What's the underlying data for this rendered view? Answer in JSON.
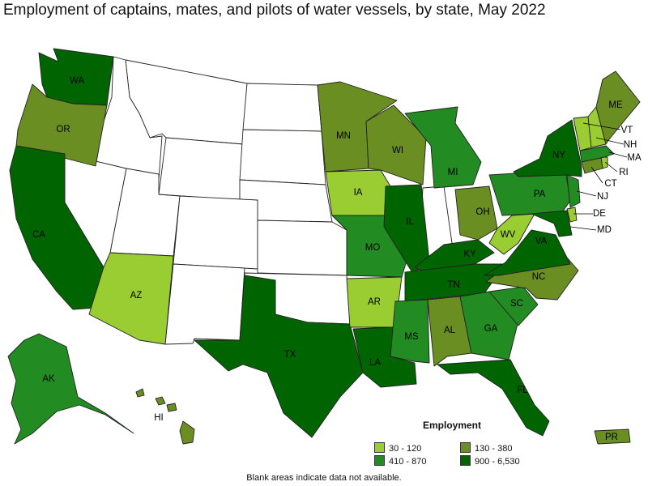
{
  "title": "Employment of captains, mates, and pilots of water vessels, by state, May 2022",
  "legend": {
    "title": "Employment",
    "items": [
      {
        "label": "30 - 120",
        "color": "#9ACD32"
      },
      {
        "label": "130 - 380",
        "color": "#6B8E23"
      },
      {
        "label": "410 - 870",
        "color": "#228B22"
      },
      {
        "label": "900 - 6,530",
        "color": "#006400"
      }
    ]
  },
  "footnote": "Blank areas indicate data not available.",
  "states": {
    "WA": {
      "label": "WA",
      "color": "#006400"
    },
    "OR": {
      "label": "OR",
      "color": "#6B8E23"
    },
    "CA": {
      "label": "CA",
      "color": "#006400"
    },
    "AK": {
      "label": "AK",
      "color": "#228B22"
    },
    "HI": {
      "label": "HI",
      "color": "#6B8E23"
    },
    "AZ": {
      "label": "AZ",
      "color": "#9ACD32"
    },
    "TX": {
      "label": "TX",
      "color": "#006400"
    },
    "MN": {
      "label": "MN",
      "color": "#6B8E23"
    },
    "IA": {
      "label": "IA",
      "color": "#9ACD32"
    },
    "MO": {
      "label": "MO",
      "color": "#228B22"
    },
    "AR": {
      "label": "AR",
      "color": "#9ACD32"
    },
    "LA": {
      "label": "LA",
      "color": "#006400"
    },
    "WI": {
      "label": "WI",
      "color": "#6B8E23"
    },
    "IL": {
      "label": "IL",
      "color": "#006400"
    },
    "MI": {
      "label": "MI",
      "color": "#228B22"
    },
    "OH": {
      "label": "OH",
      "color": "#6B8E23"
    },
    "KY": {
      "label": "KY",
      "color": "#006400"
    },
    "TN": {
      "label": "TN",
      "color": "#006400"
    },
    "MS": {
      "label": "MS",
      "color": "#228B22"
    },
    "AL": {
      "label": "AL",
      "color": "#6B8E23"
    },
    "GA": {
      "label": "GA",
      "color": "#228B22"
    },
    "FL": {
      "label": "FL",
      "color": "#006400"
    },
    "SC": {
      "label": "SC",
      "color": "#228B22"
    },
    "NC": {
      "label": "NC",
      "color": "#6B8E23"
    },
    "VA": {
      "label": "VA",
      "color": "#006400"
    },
    "WV": {
      "label": "WV",
      "color": "#9ACD32"
    },
    "PA": {
      "label": "PA",
      "color": "#228B22"
    },
    "NY": {
      "label": "NY",
      "color": "#006400"
    },
    "NJ": {
      "label": "NJ",
      "color": "#228B22"
    },
    "DE": {
      "label": "DE",
      "color": "#9ACD32"
    },
    "MD": {
      "label": "MD",
      "color": "#006400"
    },
    "CT": {
      "label": "CT",
      "color": "#6B8E23"
    },
    "RI": {
      "label": "RI",
      "color": "#9ACD32"
    },
    "MA": {
      "label": "MA",
      "color": "#228B22"
    },
    "VT": {
      "label": "VT",
      "color": "#9ACD32"
    },
    "NH": {
      "label": "NH",
      "color": "#9ACD32"
    },
    "ME": {
      "label": "ME",
      "color": "#6B8E23"
    },
    "PR": {
      "label": "PR",
      "color": "#6B8E23"
    }
  }
}
